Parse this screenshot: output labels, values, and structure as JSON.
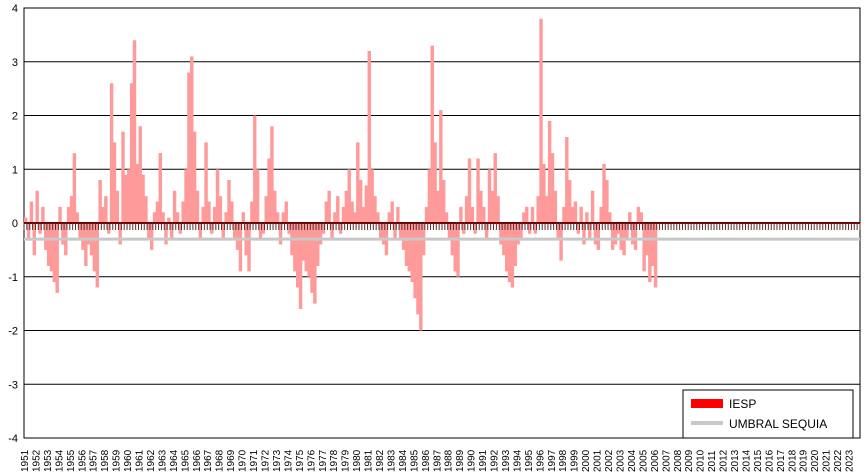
{
  "chart_data": {
    "type": "bar",
    "title": "",
    "xlabel": "",
    "ylabel": "",
    "ylim": [
      -4,
      4
    ],
    "yticks": [
      "4",
      "3",
      "2",
      "1",
      "0",
      "-1",
      "-2",
      "-3",
      "-4"
    ],
    "x_tick_labels": [
      "1951",
      "1952",
      "1953",
      "1954",
      "1955",
      "1956",
      "1957",
      "1958",
      "1959",
      "1960",
      "1961",
      "1962",
      "1963",
      "1964",
      "1965",
      "1966",
      "1967",
      "1968",
      "1969",
      "1970",
      "1971",
      "1972",
      "1973",
      "1974",
      "1975",
      "1976",
      "1977",
      "1978",
      "1979",
      "1980",
      "1981",
      "1982",
      "1983",
      "1984",
      "1985",
      "1986",
      "1987",
      "1988",
      "1989",
      "1990",
      "1991",
      "1992",
      "1993",
      "1994",
      "1995",
      "1996",
      "1997",
      "1998",
      "1999",
      "2000",
      "2001",
      "2002",
      "2003",
      "2004",
      "2005",
      "2006",
      "2007",
      "2008",
      "2009",
      "2010",
      "2011",
      "2012",
      "2013",
      "2014",
      "2015",
      "2016",
      "2017",
      "2018",
      "2019",
      "2020",
      "2021",
      "2022",
      "2023"
    ],
    "grid": true,
    "legend_position": "bottom-right",
    "series": [
      {
        "name": "IESP",
        "color": "#ff0000",
        "bar_color": "#ff9a9a",
        "x_start": 1951.0,
        "step_years": 0.25,
        "values": [
          0.1,
          -0.3,
          0.4,
          -0.6,
          0.6,
          -0.2,
          0.3,
          -0.5,
          -0.8,
          -0.9,
          -1.1,
          -1.3,
          0.3,
          -0.4,
          -0.6,
          0.3,
          0.5,
          1.3,
          0.2,
          -0.3,
          -0.5,
          -0.8,
          -0.4,
          -0.6,
          -0.9,
          -1.2,
          0.8,
          0.3,
          0.5,
          -0.2,
          2.6,
          1.5,
          0.6,
          -0.4,
          1.7,
          0.9,
          1.0,
          2.6,
          3.4,
          1.1,
          1.8,
          0.9,
          0.5,
          -0.3,
          -0.5,
          0.2,
          0.4,
          1.3,
          0.2,
          -0.4,
          0.1,
          -0.3,
          0.6,
          0.2,
          -0.2,
          0.4,
          1.0,
          2.8,
          3.1,
          1.7,
          0.6,
          -0.3,
          0.3,
          1.5,
          0.4,
          -0.2,
          0.3,
          1.0,
          0.5,
          -0.3,
          0.2,
          0.8,
          0.4,
          -0.3,
          -0.5,
          -0.9,
          0.2,
          -0.6,
          -0.9,
          0.4,
          2.0,
          1.0,
          -0.3,
          -0.2,
          0.5,
          1.2,
          1.8,
          0.6,
          0.2,
          -0.4,
          0.2,
          0.4,
          -0.2,
          -0.6,
          -0.9,
          -1.2,
          -1.6,
          -0.7,
          -0.9,
          -1.0,
          -1.3,
          -1.5,
          -0.8,
          -0.4,
          -0.2,
          0.4,
          0.6,
          -0.3,
          0.2,
          0.5,
          -0.2,
          0.3,
          0.6,
          1.0,
          0.4,
          0.2,
          1.5,
          0.8,
          0.3,
          0.7,
          3.2,
          1.0,
          0.5,
          0.2,
          -0.3,
          -0.4,
          -0.6,
          0.2,
          0.4,
          -0.3,
          0.3,
          -0.3,
          -0.5,
          -0.8,
          -0.9,
          -1.1,
          -1.4,
          -1.7,
          -2.0,
          -0.6,
          0.3,
          1.0,
          3.3,
          1.5,
          0.6,
          2.1,
          0.8,
          0.2,
          -0.3,
          -0.6,
          -0.9,
          -1.0,
          0.3,
          -0.2,
          0.5,
          1.2,
          0.3,
          -0.2,
          1.2,
          0.6,
          0.3,
          -0.3,
          1.0,
          0.6,
          1.3,
          0.5,
          -0.4,
          -0.6,
          -0.9,
          -1.1,
          -1.2,
          -0.8,
          -0.4,
          -0.3,
          0.2,
          0.3,
          -0.2,
          0.3,
          -0.2,
          0.5,
          3.8,
          1.1,
          0.5,
          1.9,
          1.3,
          0.6,
          -0.3,
          -0.7,
          0.3,
          1.6,
          0.8,
          0.3,
          0.4,
          -0.2,
          0.3,
          -0.4,
          0.2,
          -0.3,
          0.6,
          -0.4,
          -0.5,
          0.3,
          1.1,
          0.8,
          0.2,
          -0.5,
          -0.4,
          -0.2,
          -0.5,
          -0.6,
          -0.3,
          0.2,
          -0.4,
          -0.5,
          0.3,
          0.2,
          -0.9,
          -0.6,
          -1.1,
          -0.8,
          -1.2
        ]
      },
      {
        "name": "UMBRAL SEQUIA",
        "color": "#c8c8c8",
        "value": -0.3
      }
    ]
  }
}
